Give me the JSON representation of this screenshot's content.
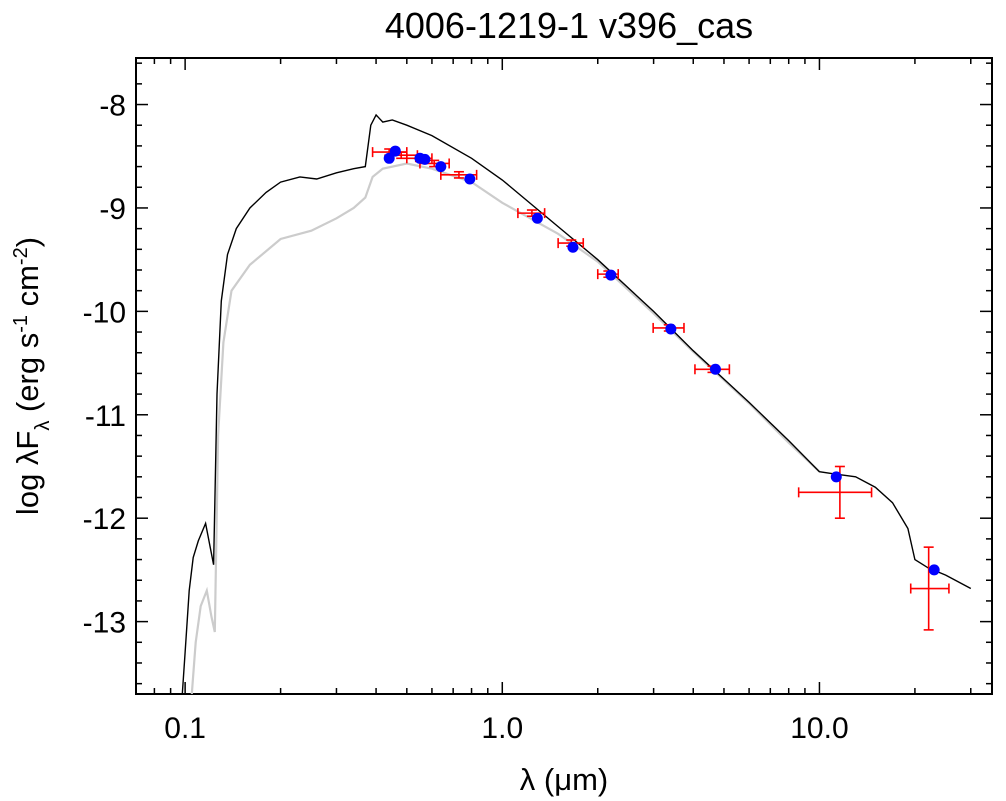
{
  "chart_data": {
    "type": "scatter",
    "title": "4006-1219-1   v396_cas",
    "xlabel": "λ (μm)",
    "ylabel": "log λF_λ (erg s^-1 cm^-2)",
    "xscale": "log",
    "xlim": [
      0.07,
      35
    ],
    "ylim": [
      -13.7,
      -7.55
    ],
    "x_ticks": [
      0.1,
      1.0,
      10.0
    ],
    "x_tick_labels": [
      "0.1",
      "1.0",
      "10.0"
    ],
    "y_ticks": [
      -8,
      -9,
      -10,
      -11,
      -12,
      -13
    ],
    "y_tick_labels": [
      "-8",
      "-9",
      "-10",
      "-11",
      "-12",
      "-13"
    ],
    "grid": false,
    "colors": {
      "observed": "#ff0000",
      "synthetic": "#0000ff",
      "model": "#000000",
      "model_faint": "#cccccc"
    },
    "observed": [
      {
        "x": 0.44,
        "y": -8.46,
        "xerr": [
          0.39,
          0.5
        ],
        "yerr": 0.03
      },
      {
        "x": 0.48,
        "y": -8.49,
        "xerr": [
          0.44,
          0.54
        ],
        "yerr": 0.03
      },
      {
        "x": 0.55,
        "y": -8.52,
        "xerr": [
          0.5,
          0.6
        ],
        "yerr": 0.03
      },
      {
        "x": 0.61,
        "y": -8.57,
        "xerr": [
          0.55,
          0.68
        ],
        "yerr": 0.03
      },
      {
        "x": 0.73,
        "y": -8.68,
        "xerr": [
          0.64,
          0.83
        ],
        "yerr": 0.03
      },
      {
        "x": 1.24,
        "y": -9.05,
        "xerr": [
          1.12,
          1.36
        ],
        "yerr": 0.03
      },
      {
        "x": 1.65,
        "y": -9.34,
        "xerr": [
          1.5,
          1.8
        ],
        "yerr": 0.03
      },
      {
        "x": 2.16,
        "y": -9.64,
        "xerr": [
          2.0,
          2.32
        ],
        "yerr": 0.03
      },
      {
        "x": 3.35,
        "y": -10.16,
        "xerr": [
          2.99,
          3.74
        ],
        "yerr": 0.03
      },
      {
        "x": 4.6,
        "y": -10.56,
        "xerr": [
          4.05,
          5.2
        ],
        "yerr": 0.03
      },
      {
        "x": 11.6,
        "y": -11.75,
        "xerr": [
          8.6,
          14.6
        ],
        "yerr": 0.25
      },
      {
        "x": 22.1,
        "y": -12.68,
        "xerr": [
          19.4,
          25.6
        ],
        "yerr": 0.4
      }
    ],
    "synthetic": [
      {
        "x": 0.44,
        "y": -8.52
      },
      {
        "x": 0.46,
        "y": -8.45
      },
      {
        "x": 0.55,
        "y": -8.52
      },
      {
        "x": 0.57,
        "y": -8.53
      },
      {
        "x": 0.64,
        "y": -8.6
      },
      {
        "x": 0.79,
        "y": -8.72
      },
      {
        "x": 1.29,
        "y": -9.1
      },
      {
        "x": 1.67,
        "y": -9.38
      },
      {
        "x": 2.2,
        "y": -9.65
      },
      {
        "x": 3.4,
        "y": -10.17
      },
      {
        "x": 4.7,
        "y": -10.56
      },
      {
        "x": 11.3,
        "y": -11.6
      },
      {
        "x": 23.0,
        "y": -12.5
      }
    ],
    "model": [
      [
        0.098,
        -13.7
      ],
      [
        0.1,
        -13.3
      ],
      [
        0.103,
        -12.7
      ],
      [
        0.106,
        -12.38
      ],
      [
        0.11,
        -12.22
      ],
      [
        0.116,
        -12.05
      ],
      [
        0.12,
        -12.28
      ],
      [
        0.123,
        -12.45
      ],
      [
        0.126,
        -10.8
      ],
      [
        0.13,
        -9.9
      ],
      [
        0.136,
        -9.45
      ],
      [
        0.145,
        -9.2
      ],
      [
        0.16,
        -9.0
      ],
      [
        0.18,
        -8.85
      ],
      [
        0.2,
        -8.75
      ],
      [
        0.23,
        -8.7
      ],
      [
        0.26,
        -8.72
      ],
      [
        0.3,
        -8.66
      ],
      [
        0.34,
        -8.62
      ],
      [
        0.37,
        -8.6
      ],
      [
        0.385,
        -8.2
      ],
      [
        0.4,
        -8.1
      ],
      [
        0.42,
        -8.17
      ],
      [
        0.45,
        -8.15
      ],
      [
        0.5,
        -8.2
      ],
      [
        0.6,
        -8.3
      ],
      [
        0.8,
        -8.52
      ],
      [
        1.0,
        -8.73
      ],
      [
        1.5,
        -9.18
      ],
      [
        2.0,
        -9.5
      ],
      [
        3.0,
        -10.0
      ],
      [
        4.0,
        -10.38
      ],
      [
        6.0,
        -10.88
      ],
      [
        8.0,
        -11.25
      ],
      [
        10.0,
        -11.55
      ],
      [
        11.0,
        -11.57
      ],
      [
        13.0,
        -11.6
      ],
      [
        15.0,
        -11.7
      ],
      [
        17.0,
        -11.85
      ],
      [
        19.0,
        -12.1
      ],
      [
        20.0,
        -12.4
      ],
      [
        22.0,
        -12.48
      ],
      [
        25.0,
        -12.55
      ],
      [
        30.0,
        -12.68
      ]
    ],
    "model_faint": [
      [
        0.105,
        -13.7
      ],
      [
        0.108,
        -13.2
      ],
      [
        0.112,
        -12.85
      ],
      [
        0.117,
        -12.7
      ],
      [
        0.121,
        -12.95
      ],
      [
        0.124,
        -13.1
      ],
      [
        0.127,
        -11.2
      ],
      [
        0.132,
        -10.3
      ],
      [
        0.14,
        -9.8
      ],
      [
        0.16,
        -9.55
      ],
      [
        0.2,
        -9.3
      ],
      [
        0.25,
        -9.22
      ],
      [
        0.3,
        -9.1
      ],
      [
        0.34,
        -9.0
      ],
      [
        0.37,
        -8.9
      ],
      [
        0.39,
        -8.7
      ],
      [
        0.42,
        -8.62
      ],
      [
        0.5,
        -8.57
      ],
      [
        0.6,
        -8.62
      ],
      [
        0.8,
        -8.75
      ],
      [
        1.0,
        -8.95
      ],
      [
        1.5,
        -9.25
      ],
      [
        2.0,
        -9.52
      ],
      [
        3.0,
        -10.02
      ],
      [
        4.0,
        -10.39
      ],
      [
        6.0,
        -10.89
      ],
      [
        8.0,
        -11.27
      ],
      [
        10.0,
        -11.55
      ]
    ]
  }
}
